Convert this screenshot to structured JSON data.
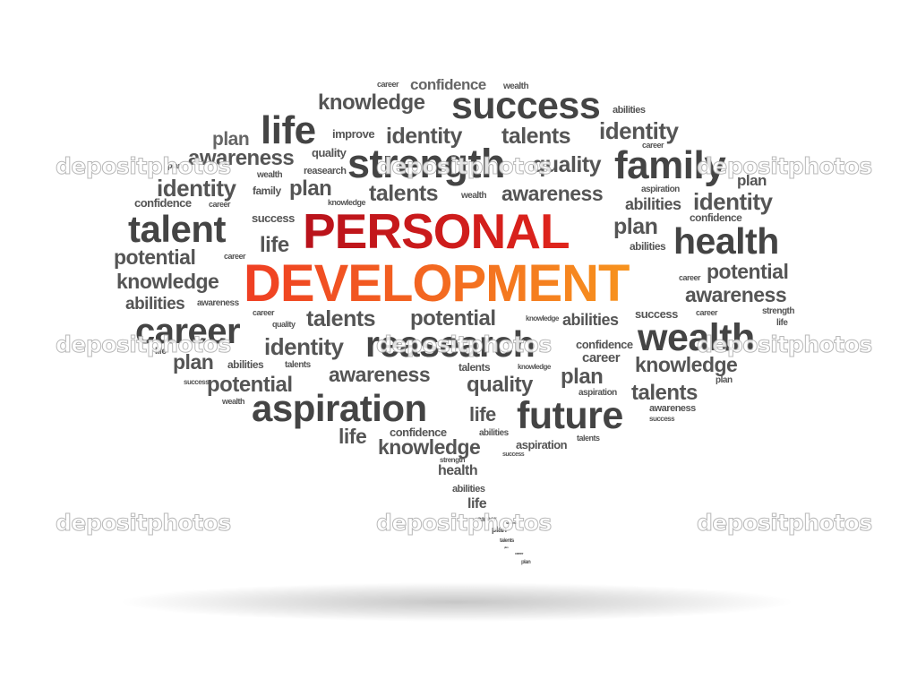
{
  "headline": {
    "line1": "PERSONAL",
    "line2": "DEVELOPMENT"
  },
  "words": [
    "career",
    "wealth",
    "confidence",
    "knowledge",
    "success",
    "abilities",
    "life",
    "plan",
    "improve",
    "identity",
    "talents",
    "awareness",
    "quality",
    "strength",
    "reasearch",
    "family",
    "wealth",
    "identity",
    "plan",
    "talents",
    "wealth",
    "awareness",
    "aspiration",
    "abilities",
    "identity",
    "confidence",
    "career",
    "knowledge",
    "confidence",
    "success",
    "talent",
    "plan",
    "health",
    "life",
    "abilities",
    "potential",
    "career",
    "potential",
    "knowledge",
    "career",
    "awareness",
    "abilities",
    "awareness",
    "career",
    "strength",
    "success",
    "knowledge",
    "quality",
    "talents",
    "potential",
    "abilities",
    "career",
    "life",
    "wealth",
    "career",
    "identity",
    "reasearch",
    "confidence",
    "plan",
    "abilities",
    "talents",
    "career",
    "knowledge",
    "success",
    "awareness",
    "talents",
    "plan",
    "plan",
    "potential",
    "quality",
    "talents",
    "wealth",
    "aspiration",
    "life",
    "future",
    "awareness",
    "success",
    "life",
    "confidence",
    "abilities",
    "talents",
    "knowledge",
    "aspiration",
    "success",
    "strength",
    "health",
    "abilities",
    "life",
    "career",
    "plan",
    "talents",
    "career",
    "plan",
    "talents",
    "identity"
  ],
  "watermark": {
    "text": "depositphotos"
  }
}
